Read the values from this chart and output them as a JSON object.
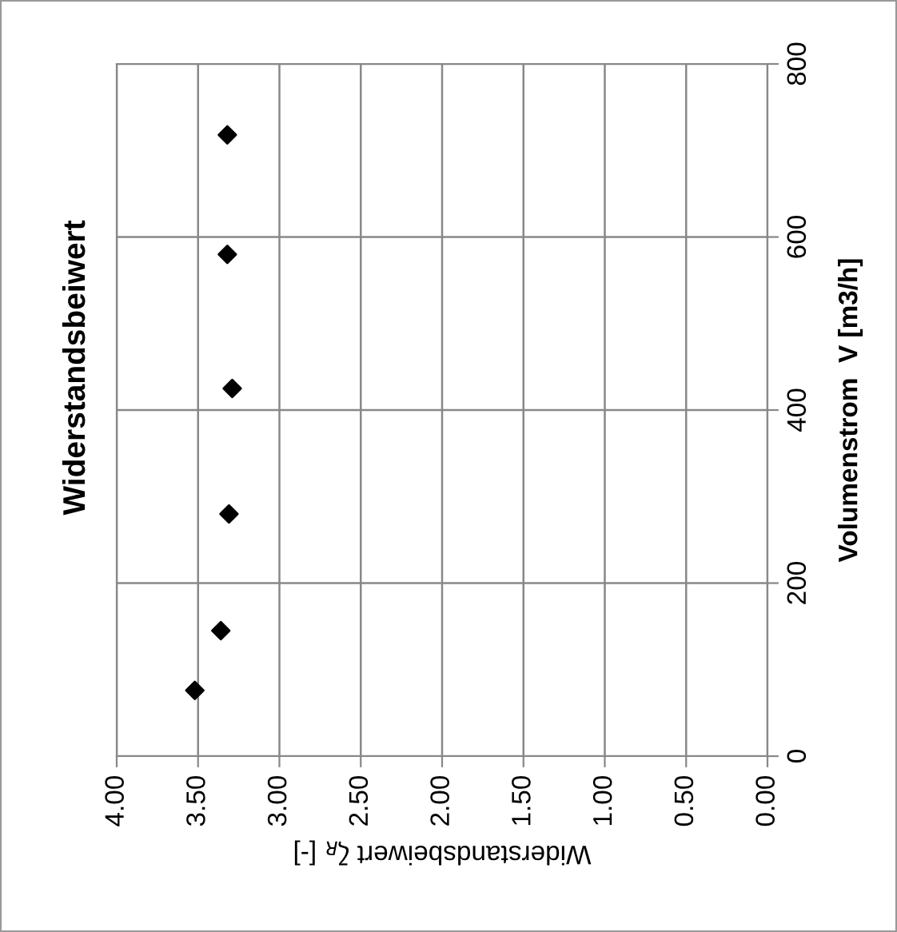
{
  "chart_data": {
    "type": "scatter",
    "title": "Widerstandsbeiwert",
    "xlabel": "Widerstandsbeiwert ζ$_{R}$ [-]",
    "ylabel": "Volumenstrom  V [m3/h]",
    "x": [
      3.52,
      3.36,
      3.31,
      3.29,
      3.32,
      3.32
    ],
    "series": [
      {
        "color": "#000000",
        "values": [
          76,
          145,
          280,
          425,
          580,
          718
        ]
      }
    ],
    "ylim": [
      0,
      800
    ],
    "yticks": [
      0,
      200,
      400,
      600,
      800
    ],
    "xlim": [
      4,
      0
    ],
    "xticks": [
      {
        "value": 4,
        "label": "4.00"
      },
      {
        "value": 3.5,
        "label": "3.50"
      },
      {
        "value": 3,
        "label": "3.00"
      },
      {
        "value": 2.5,
        "label": "2.50"
      },
      {
        "value": 2,
        "label": "2.00"
      },
      {
        "value": 1.5,
        "label": "1.50"
      },
      {
        "value": 1,
        "label": "1.00"
      },
      {
        "value": 0.5,
        "label": "0.50"
      },
      {
        "value": 0,
        "label": "0.00"
      }
    ],
    "grid": true,
    "marker": "diamond",
    "legend": false
  }
}
